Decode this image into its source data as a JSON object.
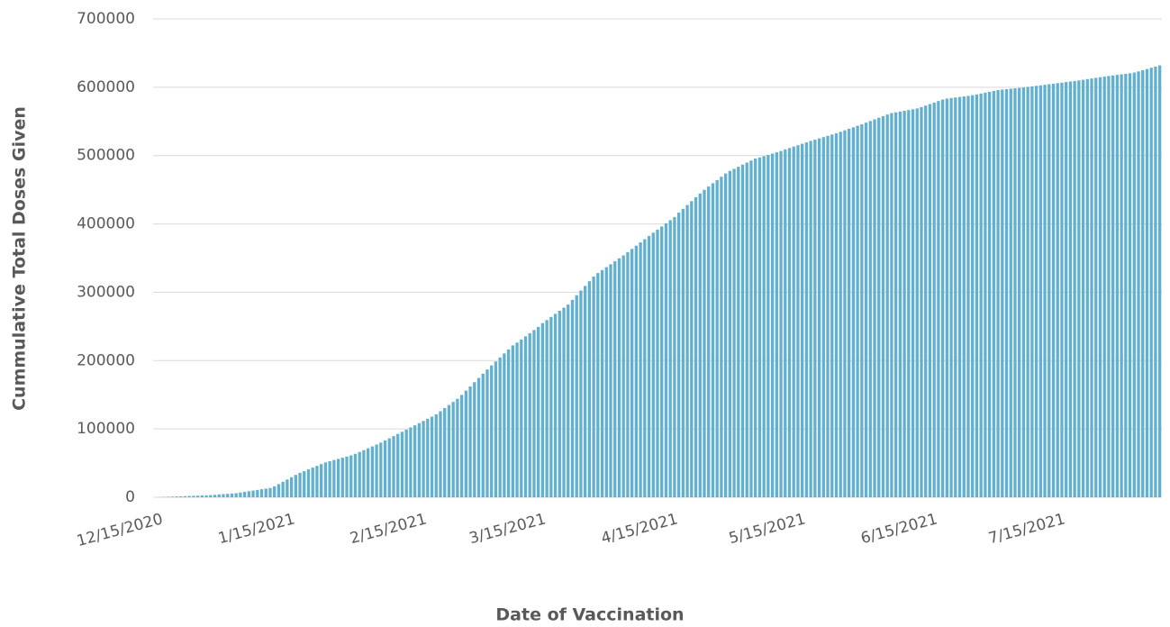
{
  "chart_data": {
    "type": "bar",
    "x_label": "Date of Vaccination",
    "y_label": "Cummulative Total Doses Given",
    "color": "#62b0d0",
    "grid": true,
    "ylim": [
      0,
      700000
    ],
    "yticks": [
      0,
      100000,
      200000,
      300000,
      400000,
      500000,
      600000,
      700000
    ],
    "categories": [
      "12/15/2020",
      null,
      null,
      null,
      null,
      null,
      null,
      null,
      null,
      null,
      null,
      null,
      null,
      null,
      null,
      null,
      null,
      null,
      null,
      null,
      null,
      null,
      null,
      null,
      null,
      null,
      null,
      null,
      null,
      null,
      null,
      "1/15/2021",
      null,
      null,
      null,
      null,
      null,
      null,
      null,
      null,
      null,
      null,
      null,
      null,
      null,
      null,
      null,
      null,
      null,
      null,
      null,
      null,
      null,
      null,
      null,
      null,
      null,
      null,
      null,
      null,
      null,
      null,
      "2/15/2021",
      null,
      null,
      null,
      null,
      null,
      null,
      null,
      null,
      null,
      null,
      null,
      null,
      null,
      null,
      null,
      null,
      null,
      null,
      null,
      null,
      null,
      null,
      null,
      null,
      null,
      null,
      null,
      "3/15/2021",
      null,
      null,
      null,
      null,
      null,
      null,
      null,
      null,
      null,
      null,
      null,
      null,
      null,
      null,
      null,
      null,
      null,
      null,
      null,
      null,
      null,
      null,
      null,
      null,
      null,
      null,
      null,
      null,
      null,
      null,
      "4/15/2021",
      null,
      null,
      null,
      null,
      null,
      null,
      null,
      null,
      null,
      null,
      null,
      null,
      null,
      null,
      null,
      null,
      null,
      null,
      null,
      null,
      null,
      null,
      null,
      null,
      null,
      null,
      null,
      null,
      null,
      "5/15/2021",
      null,
      null,
      null,
      null,
      null,
      null,
      null,
      null,
      null,
      null,
      null,
      null,
      null,
      null,
      null,
      null,
      null,
      null,
      null,
      null,
      null,
      null,
      null,
      null,
      null,
      null,
      null,
      null,
      null,
      null,
      "6/15/2021",
      null,
      null,
      null,
      null,
      null,
      null,
      null,
      null,
      null,
      null,
      null,
      null,
      null,
      null,
      null,
      null,
      null,
      null,
      null,
      null,
      null,
      null,
      null,
      null,
      null,
      null,
      null,
      null,
      null,
      "7/15/2021",
      null,
      null,
      null,
      null,
      null,
      null,
      null,
      null,
      null,
      null,
      null,
      null,
      null,
      null,
      null,
      null,
      null,
      null,
      null,
      null,
      null,
      null,
      null,
      null
    ],
    "values": [
      0,
      240,
      480,
      710,
      950,
      1190,
      1430,
      1670,
      1900,
      2140,
      2380,
      2620,
      2860,
      3190,
      3660,
      4130,
      4590,
      5060,
      5530,
      6000,
      6950,
      7900,
      8850,
      9800,
      10750,
      11700,
      12650,
      13600,
      16000,
      19300,
      22700,
      26000,
      29300,
      32700,
      35800,
      38300,
      40900,
      43400,
      46000,
      48500,
      51000,
      52700,
      54500,
      56200,
      57900,
      59600,
      61300,
      63600,
      66300,
      69000,
      71700,
      74400,
      77100,
      80000,
      83200,
      86300,
      89500,
      92700,
      95800,
      99000,
      102200,
      105300,
      108500,
      111700,
      114900,
      118000,
      121400,
      125900,
      130500,
      135000,
      139500,
      144100,
      149800,
      156000,
      162200,
      168400,
      174600,
      180800,
      187000,
      192900,
      198700,
      204600,
      210500,
      216400,
      222300,
      226300,
      230900,
      235500,
      240100,
      244700,
      249300,
      254800,
      259300,
      263900,
      268400,
      272900,
      277500,
      282000,
      288800,
      295700,
      302500,
      309300,
      316200,
      323000,
      328100,
      332400,
      336700,
      341000,
      345300,
      349600,
      353900,
      358700,
      363400,
      368200,
      373000,
      377700,
      382500,
      387100,
      391700,
      396300,
      400900,
      405500,
      410100,
      416500,
      422100,
      427700,
      433300,
      439000,
      444600,
      449900,
      454700,
      459500,
      464200,
      469000,
      473800,
      477600,
      480600,
      483600,
      486700,
      489700,
      492700,
      495700,
      497200,
      499100,
      501000,
      502900,
      504800,
      506700,
      509000,
      511100,
      513200,
      515200,
      517300,
      519300,
      521400,
      523300,
      525200,
      527000,
      528900,
      530800,
      532700,
      534800,
      537000,
      539200,
      541400,
      543700,
      545900,
      548200,
      550600,
      553000,
      555400,
      557700,
      560100,
      562200,
      563300,
      564400,
      565500,
      566600,
      567700,
      569000,
      571000,
      573200,
      575400,
      577600,
      579800,
      582000,
      583400,
      584200,
      585000,
      585800,
      586600,
      587400,
      588300,
      589500,
      590800,
      592100,
      593300,
      594600,
      595900,
      596600,
      597200,
      597800,
      598500,
      599100,
      599700,
      600500,
      601300,
      602100,
      602800,
      603600,
      604400,
      605200,
      606000,
      606800,
      607600,
      608400,
      609200,
      610000,
      610900,
      611900,
      612800,
      613800,
      614700,
      615600,
      616500,
      617300,
      618100,
      618900,
      619700,
      620400,
      621500,
      623200,
      625000,
      626700,
      628500,
      630200,
      632000
    ]
  }
}
